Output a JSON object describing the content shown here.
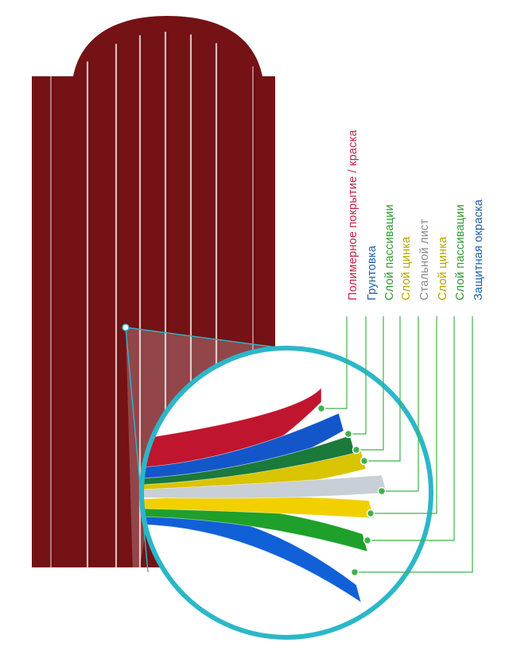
{
  "layers": [
    {
      "label": "Полимерное покрытие / краска",
      "label_color": "#c0254a",
      "fill": "#c0152e"
    },
    {
      "label": "Грунтовка",
      "label_color": "#1e5fa8",
      "fill": "#1356c9"
    },
    {
      "label": "Слой пассивации",
      "label_color": "#2e9a2e",
      "fill": "#1a7a3a"
    },
    {
      "label": "Слой цинка",
      "label_color": "#b5a800",
      "fill": "#d9c400"
    },
    {
      "label": "Стальной лист",
      "label_color": "#8a8a8a",
      "fill": "#c9cfd6"
    },
    {
      "label": "Слой цинка",
      "label_color": "#b5a800",
      "fill": "#f2d000"
    },
    {
      "label": "Слой пассивации",
      "label_color": "#2e9a2e",
      "fill": "#1fa02a"
    },
    {
      "label": "Защитная окраска",
      "label_color": "#1e5fa8",
      "fill": "#1060d8"
    }
  ],
  "colors": {
    "panel": "#741216",
    "panel_highlight": "#f3d7d7",
    "magnifier_ring": "#2bb7c9",
    "leader_line": "#3cb34a"
  }
}
